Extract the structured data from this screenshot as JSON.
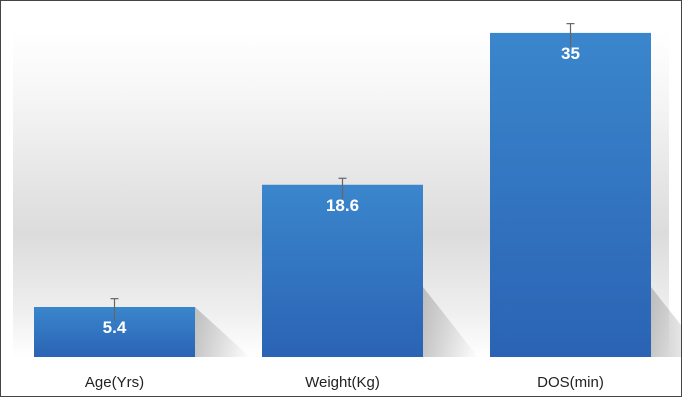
{
  "chart_data": {
    "type": "bar",
    "categories": [
      "Age(Yrs)",
      "Weight(Kg)",
      "DOS(min)"
    ],
    "values": [
      5.4,
      18.6,
      35
    ],
    "value_labels": [
      "5.4",
      "18.6",
      "35"
    ],
    "error_upper": [
      6.3,
      19.3,
      36
    ],
    "title": "",
    "xlabel": "",
    "ylabel": "",
    "ylim": [
      0,
      36.5
    ],
    "grid": false,
    "legend": "none",
    "colors": {
      "bar_top": "#3a86cc",
      "bar_bottom": "#2b63b4",
      "error_bar": "#666666",
      "value_text": "#ffffff"
    }
  }
}
